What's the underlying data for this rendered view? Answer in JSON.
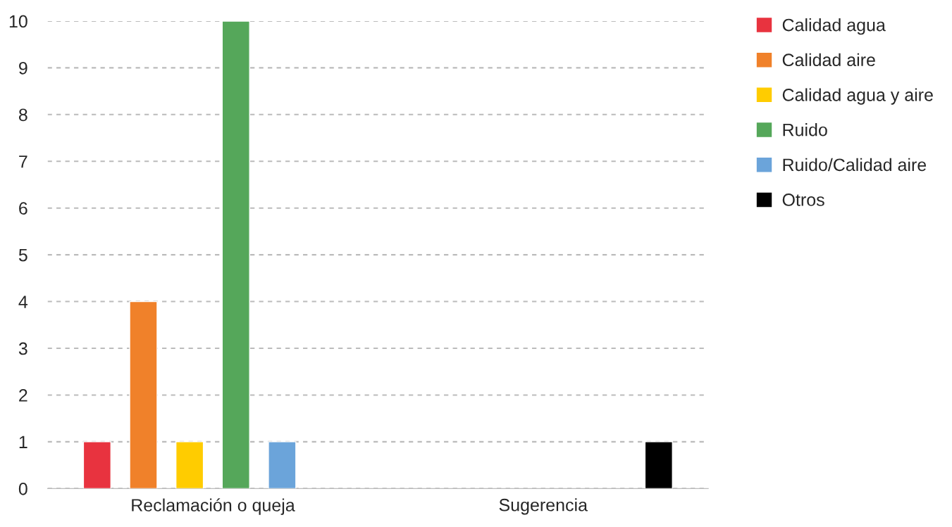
{
  "chart_data": {
    "type": "bar",
    "categories": [
      "Reclamación o queja",
      "Sugerencia"
    ],
    "series": [
      {
        "name": "Calidad agua",
        "color": "#e8333f",
        "values": [
          1,
          null
        ]
      },
      {
        "name": "Calidad aire",
        "color": "#f0812a",
        "values": [
          4,
          null
        ]
      },
      {
        "name": "Calidad agua y aire",
        "color": "#ffcc00",
        "values": [
          1,
          null
        ]
      },
      {
        "name": "Ruido",
        "color": "#55a75a",
        "values": [
          10,
          null
        ]
      },
      {
        "name": "Ruido/Calidad aire",
        "color": "#6ba4da",
        "values": [
          1,
          null
        ]
      },
      {
        "name": "Otros",
        "color": "#000000",
        "values": [
          null,
          1
        ]
      }
    ],
    "ylim": [
      0,
      10
    ],
    "yticks": [
      0,
      1,
      2,
      3,
      4,
      5,
      6,
      7,
      8,
      9,
      10
    ],
    "grid": "y",
    "legend": "right"
  }
}
